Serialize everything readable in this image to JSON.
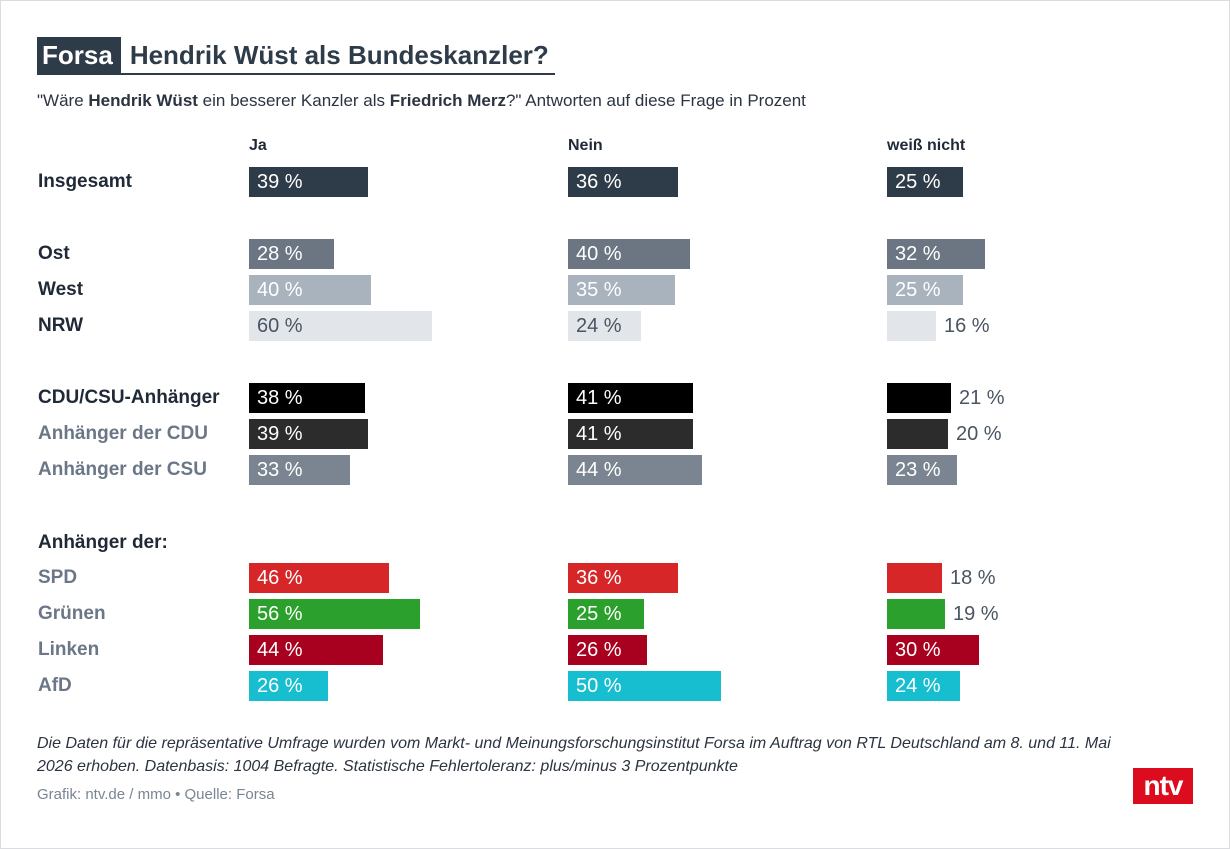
{
  "title": {
    "badge": "Forsa",
    "text": "Hendrik Wüst als Bundeskanzler?"
  },
  "subtitle": {
    "part1": "\"Wäre ",
    "name1": "Hendrik Wüst",
    "part2": " ein besserer Kanzler als ",
    "name2": "Friedrich Merz",
    "part3": "?\" Antworten auf diese Frage in Prozent"
  },
  "section_label": "Anhänger der:",
  "chart_data": {
    "type": "bar",
    "columns": [
      "Ja",
      "Nein",
      "weiß nicht"
    ],
    "unit": "%",
    "rows": [
      {
        "label": "Insgesamt",
        "values": [
          39,
          36,
          25
        ],
        "color": "#2e3b49",
        "style": "dark"
      },
      {
        "label": "Ost",
        "values": [
          28,
          40,
          32
        ],
        "color": "#6b7682",
        "style": "dark"
      },
      {
        "label": "West",
        "values": [
          40,
          35,
          25
        ],
        "color": "#a9b3bd",
        "style": "dark"
      },
      {
        "label": "NRW",
        "values": [
          60,
          24,
          16
        ],
        "color": "#e2e5e9",
        "style": "dark"
      },
      {
        "label": "CDU/CSU-Anhänger",
        "values": [
          38,
          41,
          21
        ],
        "color": "#000000",
        "style": "dark"
      },
      {
        "label": "Anhänger der CDU",
        "values": [
          39,
          41,
          20
        ],
        "color": "#2c2c2c",
        "style": "muted"
      },
      {
        "label": "Anhänger der CSU",
        "values": [
          33,
          44,
          23
        ],
        "color": "#7b8591",
        "style": "muted"
      },
      {
        "label": "SPD",
        "values": [
          46,
          36,
          18
        ],
        "color": "#d62628",
        "style": "muted"
      },
      {
        "label": "Grünen",
        "values": [
          56,
          25,
          19
        ],
        "color": "#2ca02c",
        "style": "muted"
      },
      {
        "label": "Linken",
        "values": [
          44,
          26,
          30
        ],
        "color": "#a8001f",
        "style": "muted"
      },
      {
        "label": "AfD",
        "values": [
          26,
          50,
          24
        ],
        "color": "#17becf",
        "style": "muted"
      }
    ]
  },
  "footnote": "Die Daten für die repräsentative Umfrage wurden vom Markt- und Meinungsforschungsinstitut Forsa im Auftrag von RTL Deutschland am 8. und 11. Mai 2026 erhoben. Datenbasis: 1004 Befragte. Statistische Fehlertoleranz: plus/minus 3 Prozentpunkte",
  "credit": "Grafik: ntv.de / mmo • Quelle: Forsa",
  "logo": "ntv"
}
